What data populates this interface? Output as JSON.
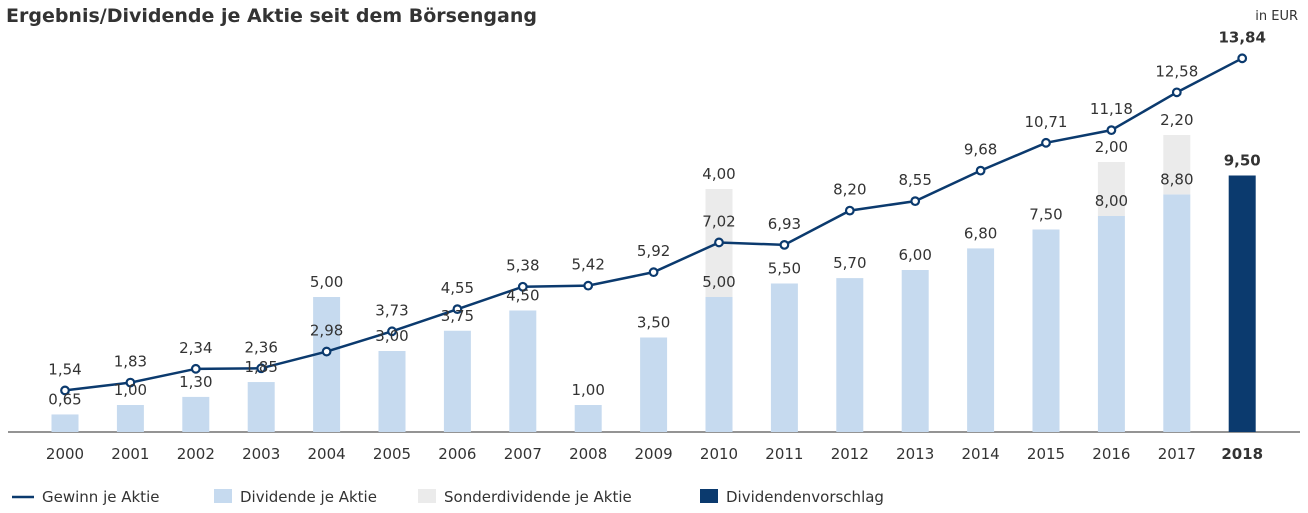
{
  "chart_data": {
    "type": "bar",
    "title": "Ergebnis/Dividende je Aktie seit dem Börsengang",
    "subtitle": "in EUR",
    "categories": [
      "2000",
      "2001",
      "2002",
      "2003",
      "2004",
      "2005",
      "2006",
      "2007",
      "2008",
      "2009",
      "2010",
      "2011",
      "2012",
      "2013",
      "2014",
      "2015",
      "2016",
      "2017",
      "2018"
    ],
    "ylim": [
      0,
      16
    ],
    "series": [
      {
        "name": "Gewinn je Aktie",
        "type": "line",
        "color": "#0b3a6e",
        "values": [
          1.54,
          1.83,
          2.34,
          2.36,
          2.98,
          3.73,
          4.55,
          5.38,
          5.42,
          5.92,
          7.02,
          6.93,
          8.2,
          8.55,
          9.68,
          10.71,
          11.18,
          12.58,
          13.84
        ],
        "value_labels": [
          "1,54",
          "1,83",
          "2,34",
          "2,36",
          "2,98",
          "3,73",
          "4,55",
          "5,38",
          "5,42",
          "5,92",
          "7,02",
          "6,93",
          "8,20",
          "8,55",
          "9,68",
          "10,71",
          "11,18",
          "12,58",
          "13,84"
        ]
      },
      {
        "name": "Dividende je Aktie",
        "type": "bar",
        "color": "#c6daef",
        "values": [
          0.65,
          1.0,
          1.3,
          1.85,
          5.0,
          3.0,
          3.75,
          4.5,
          1.0,
          3.5,
          5.0,
          5.5,
          5.7,
          6.0,
          6.8,
          7.5,
          8.0,
          8.8,
          null
        ],
        "value_labels": [
          "0,65",
          "1,00",
          "1,30",
          "1,85",
          "5,00",
          "3,00",
          "3,75",
          "4,50",
          "1,00",
          "3,50",
          "5,00",
          "5,50",
          "5,70",
          "6,00",
          "6,80",
          "7,50",
          "8,00",
          "8,80",
          null
        ]
      },
      {
        "name": "Sonderdividende je Aktie",
        "type": "stacked",
        "color": "#ebebeb",
        "values": [
          null,
          null,
          null,
          null,
          null,
          null,
          null,
          null,
          null,
          null,
          4.0,
          null,
          null,
          null,
          null,
          null,
          2.0,
          2.2,
          null
        ],
        "value_labels": [
          null,
          null,
          null,
          null,
          null,
          null,
          null,
          null,
          null,
          null,
          "4,00",
          null,
          null,
          null,
          null,
          null,
          "2,00",
          "2,20",
          null
        ]
      },
      {
        "name": "Dividendenvorschlag",
        "type": "bar",
        "color": "#0b3a6e",
        "values": [
          null,
          null,
          null,
          null,
          null,
          null,
          null,
          null,
          null,
          null,
          null,
          null,
          null,
          null,
          null,
          null,
          null,
          null,
          9.5
        ],
        "value_labels": [
          null,
          null,
          null,
          null,
          null,
          null,
          null,
          null,
          null,
          null,
          null,
          null,
          null,
          null,
          null,
          null,
          null,
          null,
          "9,50"
        ]
      }
    ]
  }
}
